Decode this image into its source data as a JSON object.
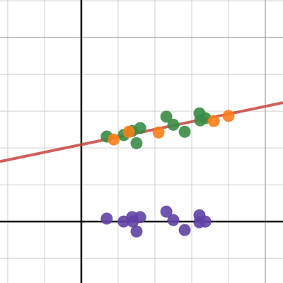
{
  "chart_data": {
    "type": "scatter",
    "xlim": [
      -2.21,
      5.48
    ],
    "ylim": [
      -1.67,
      6.02
    ],
    "xgrid": [
      -2,
      -1,
      0,
      1,
      2,
      3,
      4,
      5
    ],
    "ygrid": [
      -1,
      0,
      1,
      2,
      3,
      4,
      5,
      6
    ],
    "grid": true,
    "axes": true,
    "major_grid_every": 5,
    "line": {
      "color": "#c74440",
      "x": [
        -2.21,
        5.48
      ],
      "y": [
        1.63,
        3.23
      ]
    },
    "series": [
      {
        "color": "#6042a6",
        "x": [
          0.69,
          1.15,
          1.38,
          1.6,
          1.4,
          1.5,
          2.31,
          2.5,
          2.81,
          3.21,
          3.21,
          3.37
        ],
        "values": [
          0.08,
          0,
          0.12,
          0.12,
          0,
          -0.27,
          0.27,
          0.04,
          -0.23,
          0.17,
          -0.02,
          0
        ]
      },
      {
        "color": "#388c46",
        "x": [
          0.69,
          1.15,
          1.38,
          1.6,
          1.5,
          2.31,
          2.5,
          2.81,
          3.21,
          3.23,
          3.37
        ],
        "values": [
          2.31,
          2.35,
          2.46,
          2.54,
          2.13,
          2.85,
          2.63,
          2.44,
          2.94,
          2.75,
          2.81
        ]
      },
      {
        "color": "#fa7e19",
        "x": [
          0.88,
          1.29,
          2.1,
          3.6,
          4.0
        ],
        "values": [
          2.23,
          2.44,
          2.42,
          2.73,
          2.87
        ]
      }
    ]
  }
}
